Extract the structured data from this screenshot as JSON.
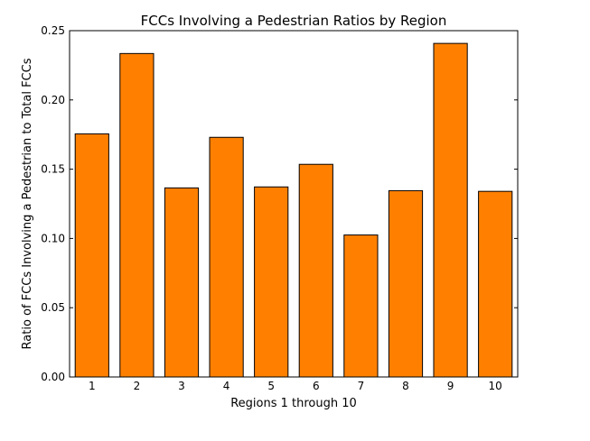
{
  "chart_data": {
    "type": "bar",
    "title": "FCCs Involving a Pedestrian Ratios by Region",
    "xlabel": "Regions 1 through 10",
    "ylabel": "Ratio of FCCs Involving a Pedestrian to Total FCCs",
    "categories": [
      "1",
      "2",
      "3",
      "4",
      "5",
      "6",
      "7",
      "8",
      "9",
      "10"
    ],
    "values": [
      0.1755,
      0.2335,
      0.1365,
      0.173,
      0.1372,
      0.1535,
      0.1025,
      0.1345,
      0.2408,
      0.134
    ],
    "ylim": [
      0,
      0.25
    ],
    "yticks": [
      "0.00",
      "0.05",
      "0.10",
      "0.15",
      "0.20",
      "0.25"
    ],
    "grid": false,
    "bar_color": "#ff8000",
    "edge_color": "#000000"
  }
}
